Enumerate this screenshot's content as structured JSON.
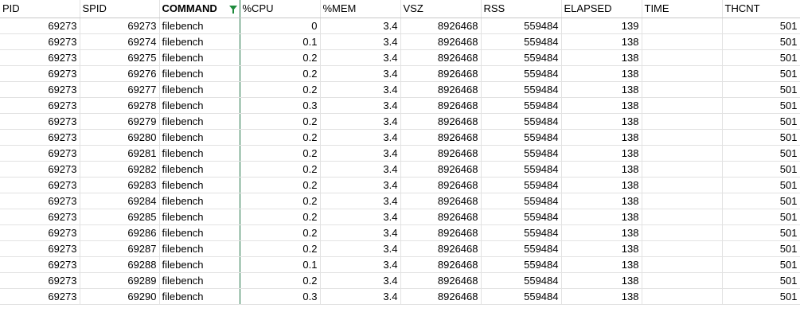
{
  "headers": [
    "PID",
    "SPID",
    "COMMAND",
    "%CPU",
    "%MEM",
    "VSZ",
    "RSS",
    "ELAPSED",
    "TIME",
    "THCNT"
  ],
  "rows": [
    [
      "69273",
      "69273",
      "filebench",
      "0",
      "3.4",
      "8926468",
      "559484",
      "139",
      "",
      "501"
    ],
    [
      "69273",
      "69274",
      "filebench",
      "0.1",
      "3.4",
      "8926468",
      "559484",
      "138",
      "",
      "501"
    ],
    [
      "69273",
      "69275",
      "filebench",
      "0.2",
      "3.4",
      "8926468",
      "559484",
      "138",
      "",
      "501"
    ],
    [
      "69273",
      "69276",
      "filebench",
      "0.2",
      "3.4",
      "8926468",
      "559484",
      "138",
      "",
      "501"
    ],
    [
      "69273",
      "69277",
      "filebench",
      "0.2",
      "3.4",
      "8926468",
      "559484",
      "138",
      "",
      "501"
    ],
    [
      "69273",
      "69278",
      "filebench",
      "0.3",
      "3.4",
      "8926468",
      "559484",
      "138",
      "",
      "501"
    ],
    [
      "69273",
      "69279",
      "filebench",
      "0.2",
      "3.4",
      "8926468",
      "559484",
      "138",
      "",
      "501"
    ],
    [
      "69273",
      "69280",
      "filebench",
      "0.2",
      "3.4",
      "8926468",
      "559484",
      "138",
      "",
      "501"
    ],
    [
      "69273",
      "69281",
      "filebench",
      "0.2",
      "3.4",
      "8926468",
      "559484",
      "138",
      "",
      "501"
    ],
    [
      "69273",
      "69282",
      "filebench",
      "0.2",
      "3.4",
      "8926468",
      "559484",
      "138",
      "",
      "501"
    ],
    [
      "69273",
      "69283",
      "filebench",
      "0.2",
      "3.4",
      "8926468",
      "559484",
      "138",
      "",
      "501"
    ],
    [
      "69273",
      "69284",
      "filebench",
      "0.2",
      "3.4",
      "8926468",
      "559484",
      "138",
      "",
      "501"
    ],
    [
      "69273",
      "69285",
      "filebench",
      "0.2",
      "3.4",
      "8926468",
      "559484",
      "138",
      "",
      "501"
    ],
    [
      "69273",
      "69286",
      "filebench",
      "0.2",
      "3.4",
      "8926468",
      "559484",
      "138",
      "",
      "501"
    ],
    [
      "69273",
      "69287",
      "filebench",
      "0.2",
      "3.4",
      "8926468",
      "559484",
      "138",
      "",
      "501"
    ],
    [
      "69273",
      "69288",
      "filebench",
      "0.1",
      "3.4",
      "8926468",
      "559484",
      "138",
      "",
      "501"
    ],
    [
      "69273",
      "69289",
      "filebench",
      "0.2",
      "3.4",
      "8926468",
      "559484",
      "138",
      "",
      "501"
    ],
    [
      "69273",
      "69290",
      "filebench",
      "0.3",
      "3.4",
      "8926468",
      "559484",
      "138",
      "",
      "501"
    ]
  ],
  "filtered_column": "COMMAND",
  "icons": {
    "filter": "filter-funnel-icon"
  },
  "colors": {
    "filter_accent": "#1e8a3c",
    "selected_column_border": "#217346"
  }
}
